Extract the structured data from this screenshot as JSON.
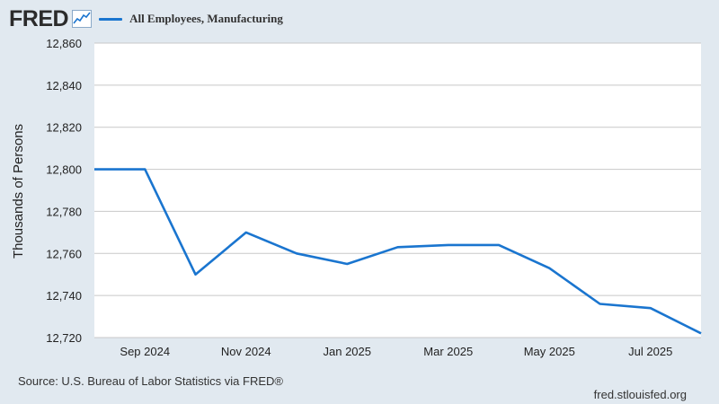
{
  "header": {
    "logo": "FRED",
    "logo_icon": "line-chart-icon",
    "legend_label": "All Employees, Manufacturing"
  },
  "footer": {
    "source": "Source: U.S. Bureau of Labor Statistics via FRED®",
    "url": "fred.stlouisfed.org"
  },
  "colors": {
    "background": "#e1e9f0",
    "plot_background": "#ffffff",
    "series": "#1a75cf",
    "grid": "#c8c8c8"
  },
  "chart_data": {
    "type": "line",
    "title": "",
    "xlabel": "",
    "ylabel": "Thousands of Persons",
    "ylim": [
      12720,
      12860
    ],
    "y_ticks": [
      12720,
      12740,
      12760,
      12780,
      12800,
      12820,
      12840,
      12860
    ],
    "y_tick_labels": [
      "12,720",
      "12,740",
      "12,760",
      "12,780",
      "12,800",
      "12,820",
      "12,840",
      "12,860"
    ],
    "xlim": [
      "2024-08",
      "2025-08"
    ],
    "x_ticks": [
      "2024-09",
      "2024-11",
      "2025-01",
      "2025-03",
      "2025-05",
      "2025-07"
    ],
    "x_tick_labels": [
      "Sep 2024",
      "Nov 2024",
      "Jan 2025",
      "Mar 2025",
      "May 2025",
      "Jul 2025"
    ],
    "grid": "horizontal",
    "legend": "top-left",
    "series": [
      {
        "name": "All Employees, Manufacturing",
        "x": [
          "2024-08",
          "2024-09",
          "2024-10",
          "2024-11",
          "2024-12",
          "2025-01",
          "2025-02",
          "2025-03",
          "2025-04",
          "2025-05",
          "2025-06",
          "2025-07",
          "2025-08"
        ],
        "values": [
          12800,
          12800,
          12750,
          12770,
          12760,
          12755,
          12763,
          12764,
          12764,
          12753,
          12736,
          12734,
          12722
        ]
      }
    ]
  }
}
